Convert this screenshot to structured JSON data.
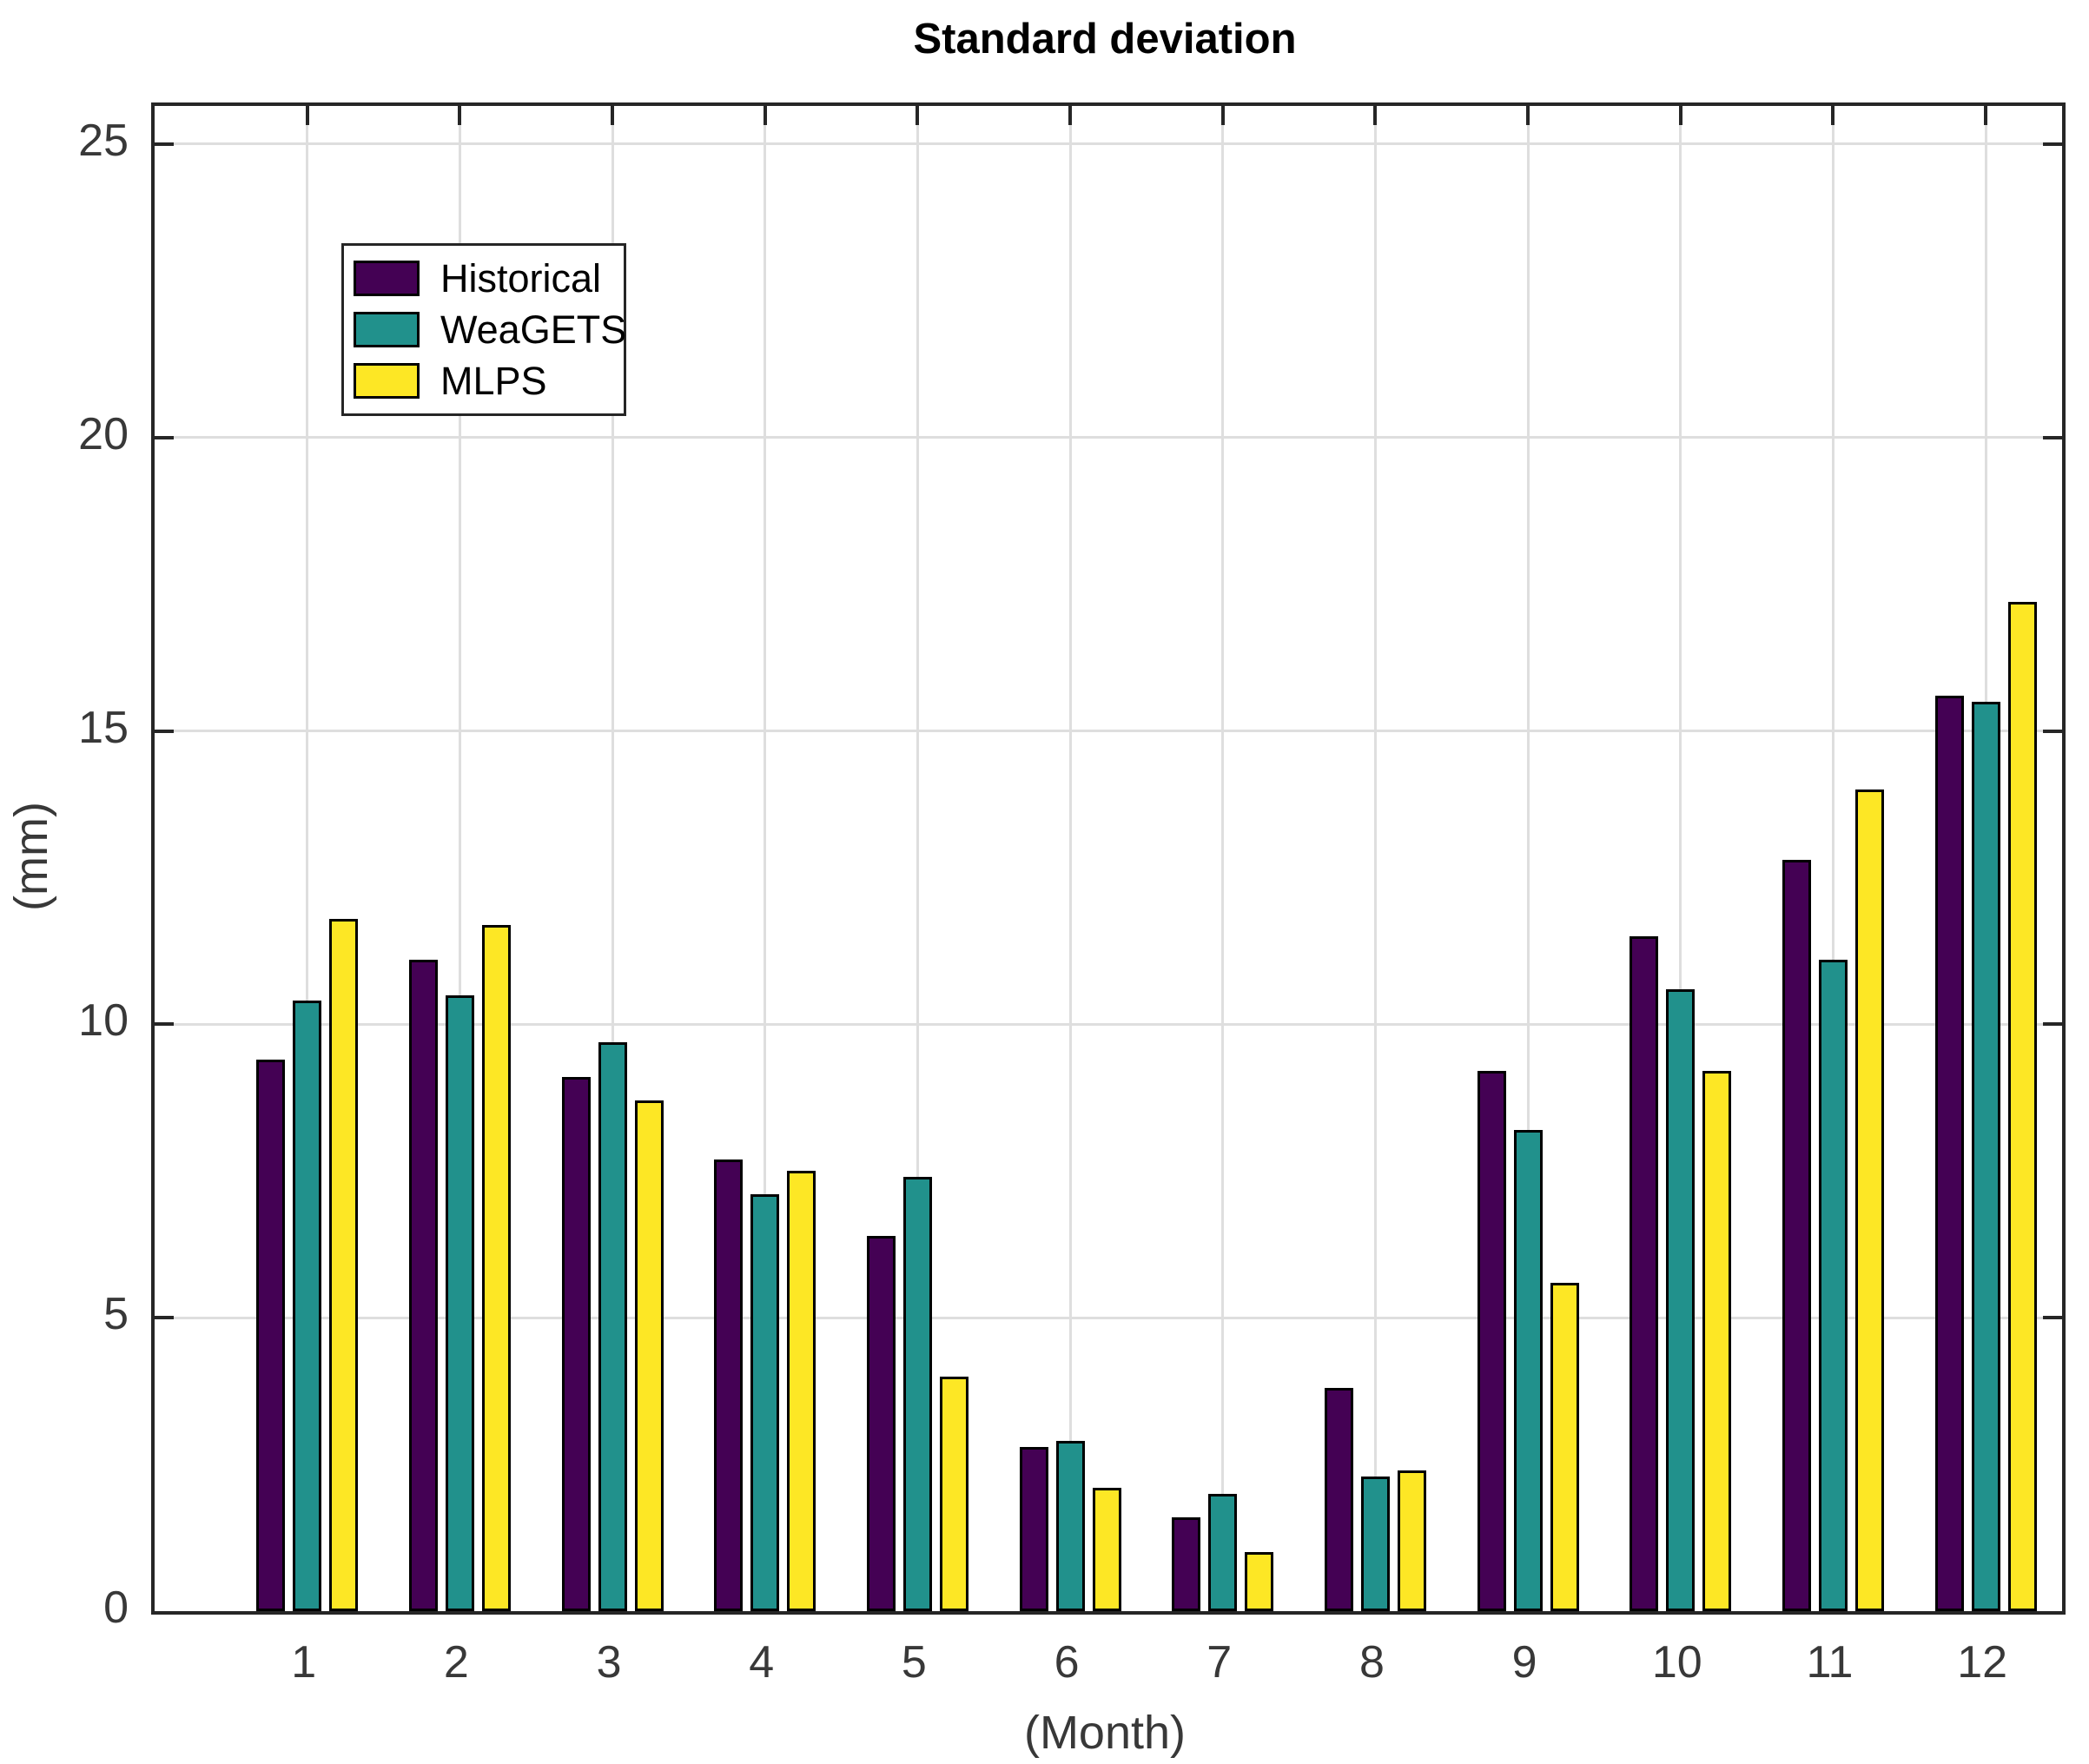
{
  "chart_data": {
    "type": "bar",
    "title": "Standard deviation",
    "xlabel": "(Month)",
    "ylabel": "(mm)",
    "categories": [
      "1",
      "2",
      "3",
      "4",
      "5",
      "6",
      "7",
      "8",
      "9",
      "10",
      "11",
      "12"
    ],
    "series": [
      {
        "name": "Historical",
        "color": "#440154",
        "values": [
          9.4,
          11.1,
          9.1,
          7.7,
          6.4,
          2.8,
          1.6,
          3.8,
          9.2,
          11.5,
          12.8,
          15.6
        ]
      },
      {
        "name": "WeaGETS",
        "color": "#21918c",
        "values": [
          10.4,
          10.5,
          9.7,
          7.1,
          7.4,
          2.9,
          2.0,
          2.3,
          8.2,
          10.6,
          11.1,
          15.5
        ]
      },
      {
        "name": "MLPS",
        "color": "#fde725",
        "values": [
          11.8,
          11.7,
          8.7,
          7.5,
          4.0,
          2.1,
          1.0,
          2.4,
          5.6,
          9.2,
          14.0,
          17.2
        ]
      }
    ],
    "ylim": [
      0,
      25.65
    ],
    "yticks": [
      0,
      5,
      10,
      15,
      20,
      25
    ],
    "grid": true,
    "legend_position": "top-left"
  },
  "style": {
    "axis_color": "#262626",
    "grid_color": "#dedede",
    "tick_label_color": "#383838",
    "axis_label_color": "#383838",
    "title_color": "#000000",
    "bar_edge_color": "#000000",
    "background": "#ffffff"
  }
}
